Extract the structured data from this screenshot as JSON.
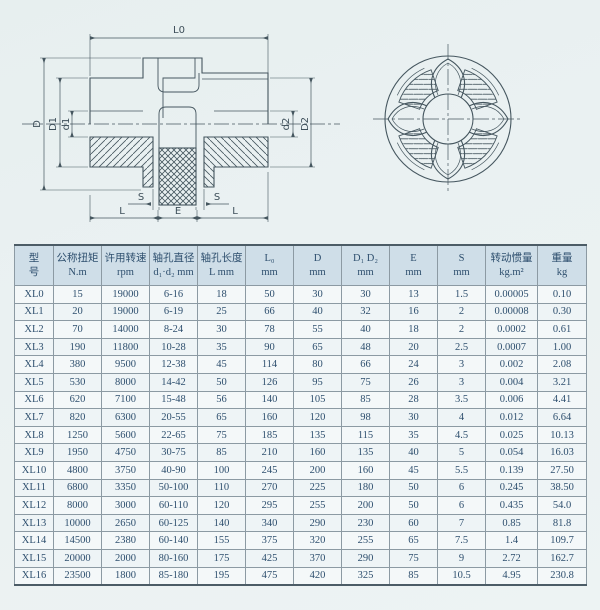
{
  "colors": {
    "page_bg": "#e9f0f1",
    "drawing_line": "#45565f",
    "table_text": "#2e4f6e",
    "header_bg": "#cfdee8",
    "table_grid": "#8c9aa3",
    "table_frame": "#4c5c66"
  },
  "drawing": {
    "section_labels": {
      "l0": "L0",
      "d": "D",
      "d1_cap": "D1",
      "d1_low": "d1",
      "d2_low": "d2",
      "d2_cap": "D2",
      "s_left": "S",
      "s_right": "S",
      "l_left": "L",
      "e": "E",
      "l_right": "L"
    }
  },
  "table": {
    "headers": [
      {
        "l1": "型",
        "l2": "号"
      },
      {
        "l1": "公称扭矩",
        "l2": "N.m"
      },
      {
        "l1": "许用转速",
        "l2": "rpm"
      },
      {
        "l1": "轴孔直径",
        "l2": "d₁·d₂ mm"
      },
      {
        "l1": "轴孔长度",
        "l2": "L mm"
      },
      {
        "l1": "L₀",
        "l2": "mm"
      },
      {
        "l1": "D",
        "l2": "mm"
      },
      {
        "l1": "D₁ D₂",
        "l2": "mm"
      },
      {
        "l1": "E",
        "l2": "mm"
      },
      {
        "l1": "S",
        "l2": "mm"
      },
      {
        "l1": "转动惯量",
        "l2": "kg.m²"
      },
      {
        "l1": "重量",
        "l2": "kg"
      }
    ],
    "rows": [
      [
        "XL0",
        "15",
        "19000",
        "6-16",
        "18",
        "50",
        "30",
        "30",
        "13",
        "1.5",
        "0.00005",
        "0.10"
      ],
      [
        "XL1",
        "20",
        "19000",
        "6-19",
        "25",
        "66",
        "40",
        "32",
        "16",
        "2",
        "0.00008",
        "0.30"
      ],
      [
        "XL2",
        "70",
        "14000",
        "8-24",
        "30",
        "78",
        "55",
        "40",
        "18",
        "2",
        "0.0002",
        "0.61"
      ],
      [
        "XL3",
        "190",
        "11800",
        "10-28",
        "35",
        "90",
        "65",
        "48",
        "20",
        "2.5",
        "0.0007",
        "1.00"
      ],
      [
        "XL4",
        "380",
        "9500",
        "12-38",
        "45",
        "114",
        "80",
        "66",
        "24",
        "3",
        "0.002",
        "2.08"
      ],
      [
        "XL5",
        "530",
        "8000",
        "14-42",
        "50",
        "126",
        "95",
        "75",
        "26",
        "3",
        "0.004",
        "3.21"
      ],
      [
        "XL6",
        "620",
        "7100",
        "15-48",
        "56",
        "140",
        "105",
        "85",
        "28",
        "3.5",
        "0.006",
        "4.41"
      ],
      [
        "XL7",
        "820",
        "6300",
        "20-55",
        "65",
        "160",
        "120",
        "98",
        "30",
        "4",
        "0.012",
        "6.64"
      ],
      [
        "XL8",
        "1250",
        "5600",
        "22-65",
        "75",
        "185",
        "135",
        "115",
        "35",
        "4.5",
        "0.025",
        "10.13"
      ],
      [
        "XL9",
        "1950",
        "4750",
        "30-75",
        "85",
        "210",
        "160",
        "135",
        "40",
        "5",
        "0.054",
        "16.03"
      ],
      [
        "XL10",
        "4800",
        "3750",
        "40-90",
        "100",
        "245",
        "200",
        "160",
        "45",
        "5.5",
        "0.139",
        "27.50"
      ],
      [
        "XL11",
        "6800",
        "3350",
        "50-100",
        "110",
        "270",
        "225",
        "180",
        "50",
        "6",
        "0.245",
        "38.50"
      ],
      [
        "XL12",
        "8000",
        "3000",
        "60-110",
        "120",
        "295",
        "255",
        "200",
        "50",
        "6",
        "0.435",
        "54.0"
      ],
      [
        "XL13",
        "10000",
        "2650",
        "60-125",
        "140",
        "340",
        "290",
        "230",
        "60",
        "7",
        "0.85",
        "81.8"
      ],
      [
        "XL14",
        "14500",
        "2380",
        "60-140",
        "155",
        "375",
        "320",
        "255",
        "65",
        "7.5",
        "1.4",
        "109.7"
      ],
      [
        "XL15",
        "20000",
        "2000",
        "80-160",
        "175",
        "425",
        "370",
        "290",
        "75",
        "9",
        "2.72",
        "162.7"
      ],
      [
        "XL16",
        "23500",
        "1800",
        "85-180",
        "195",
        "475",
        "420",
        "325",
        "85",
        "10.5",
        "4.95",
        "230.8"
      ]
    ]
  }
}
